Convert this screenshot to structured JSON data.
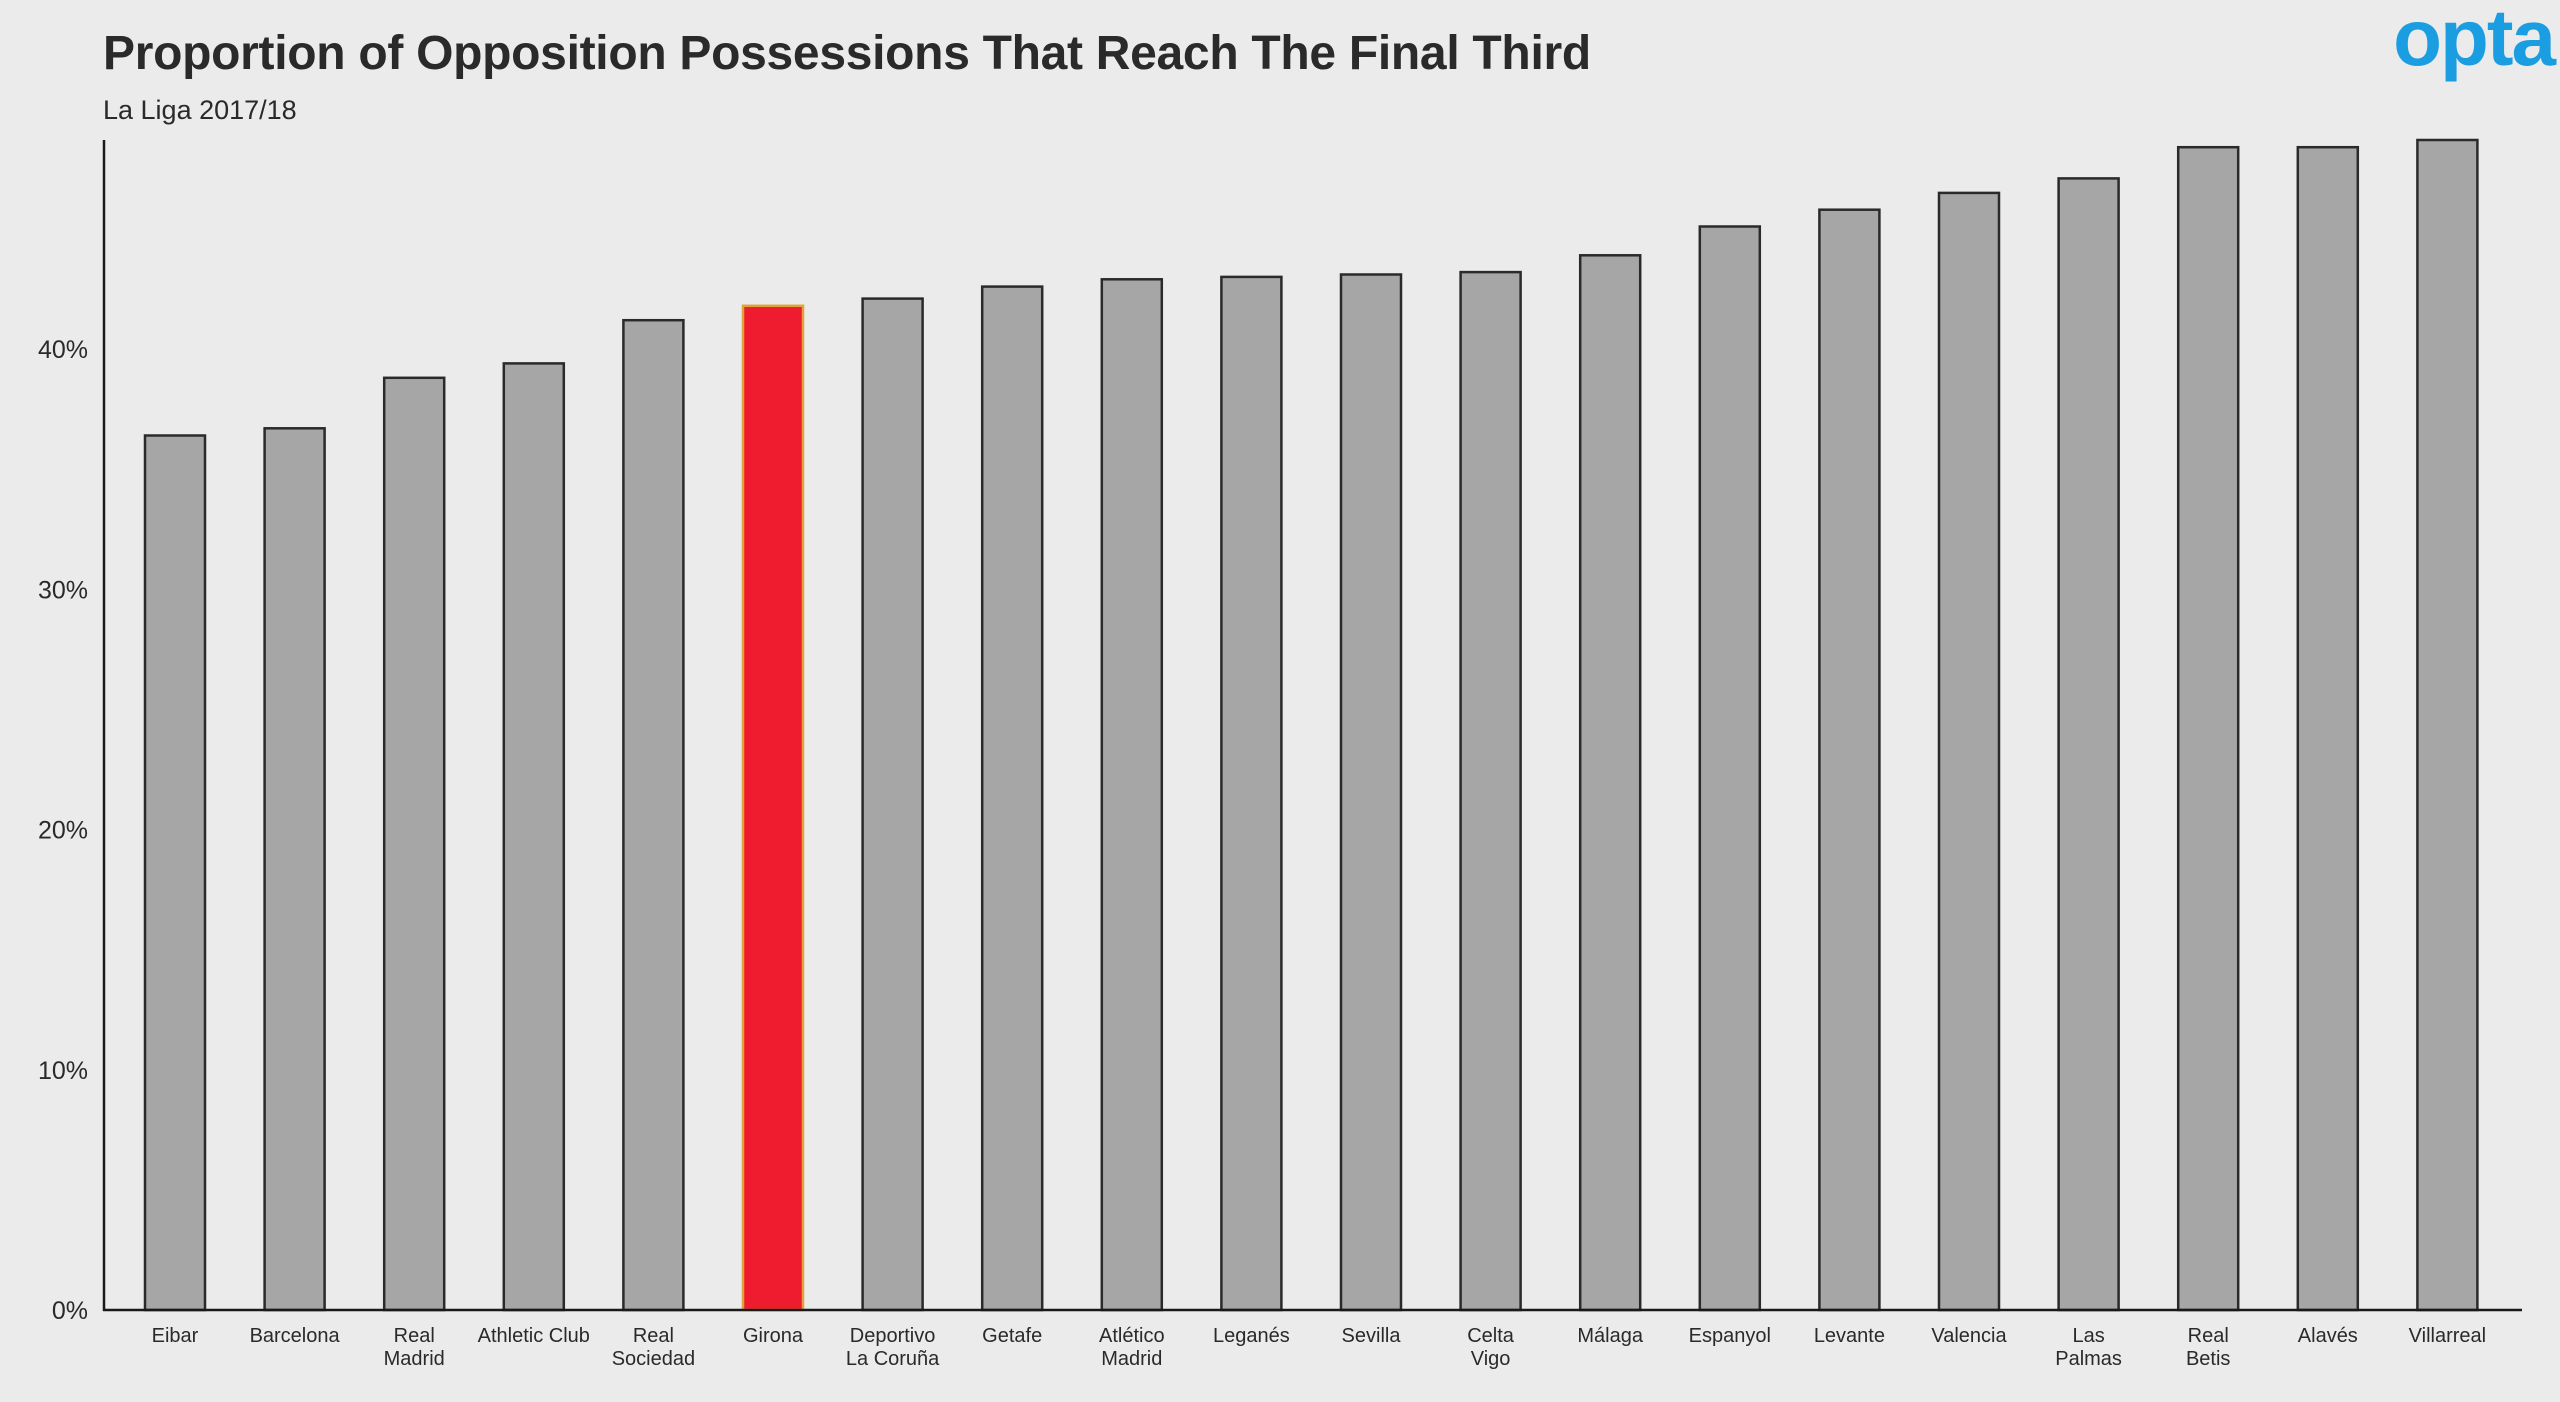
{
  "title": "Proportion of Opposition Possessions That Reach The Final Third",
  "subtitle": "La Liga 2017/18",
  "logo": {
    "text": "opta",
    "color": "#1b9de2"
  },
  "colors": {
    "bar": "#a6a6a6",
    "highlight_bar": "#ee1c2e",
    "highlight_outline": "#e0a33a",
    "bar_outline": "#2a2a2a",
    "axis": "#1a1a1a",
    "background": "#ebebeb"
  },
  "chart_data": {
    "type": "bar",
    "title": "Proportion of Opposition Possessions That Reach The Final Third",
    "subtitle": "La Liga 2017/18",
    "xlabel": "",
    "ylabel": "",
    "ylim": [
      0,
      0.487
    ],
    "yticks": [
      0,
      0.1,
      0.2,
      0.3,
      0.4
    ],
    "ytick_labels": [
      "0%",
      "10%",
      "20%",
      "30%",
      "40%"
    ],
    "grid": false,
    "legend": "none",
    "categories": [
      [
        "Eibar"
      ],
      [
        "Barcelona"
      ],
      [
        "Real",
        "Madrid"
      ],
      [
        "Athletic Club"
      ],
      [
        "Real",
        "Sociedad"
      ],
      [
        "Girona"
      ],
      [
        "Deportivo",
        "La Coruña"
      ],
      [
        "Getafe"
      ],
      [
        "Atlético",
        "Madrid"
      ],
      [
        "Leganés"
      ],
      [
        "Sevilla"
      ],
      [
        "Celta",
        "Vigo"
      ],
      [
        "Málaga"
      ],
      [
        "Espanyol"
      ],
      [
        "Levante"
      ],
      [
        "Valencia"
      ],
      [
        "Las",
        "Palmas"
      ],
      [
        "Real",
        "Betis"
      ],
      [
        "Alavés"
      ],
      [
        "Villarreal"
      ]
    ],
    "values": [
      0.364,
      0.367,
      0.388,
      0.394,
      0.412,
      0.418,
      0.421,
      0.426,
      0.429,
      0.43,
      0.431,
      0.432,
      0.439,
      0.451,
      0.458,
      0.465,
      0.471,
      0.484,
      0.484,
      0.487
    ],
    "highlight": "Girona"
  }
}
